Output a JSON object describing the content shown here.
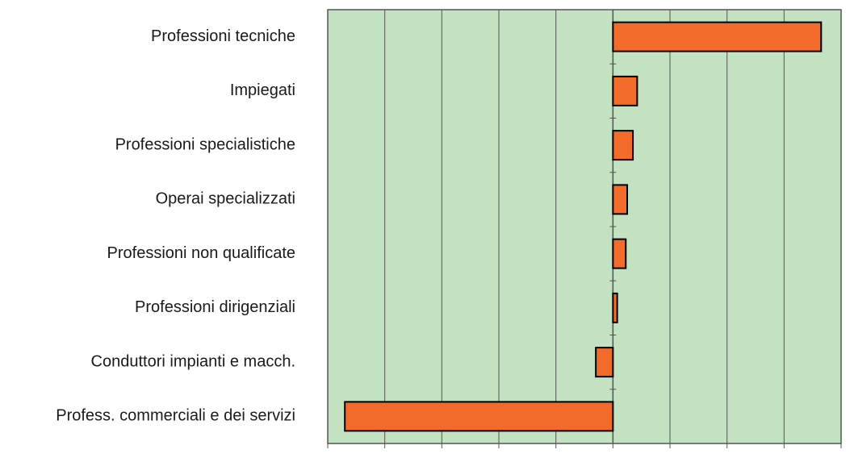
{
  "chart_data": {
    "type": "hbar",
    "categories": [
      "Professioni tecniche",
      "Impiegati",
      "Professioni specialistiche",
      "Operai specializzati",
      "Professioni non qualificate",
      "Professioni dirigenziali",
      "Conduttori impianti e macch.",
      "Profess. commerciali e dei servizi"
    ],
    "values": [
      7.3,
      0.85,
      0.7,
      0.5,
      0.45,
      0.15,
      -0.6,
      -9.4
    ],
    "color": "#f26b2b",
    "background": "#c3e2c1",
    "xlim": [
      -10,
      8
    ],
    "xticks": [
      -10,
      -8,
      -6,
      -4,
      -2,
      0,
      2,
      4,
      6,
      8
    ],
    "grid": true
  }
}
